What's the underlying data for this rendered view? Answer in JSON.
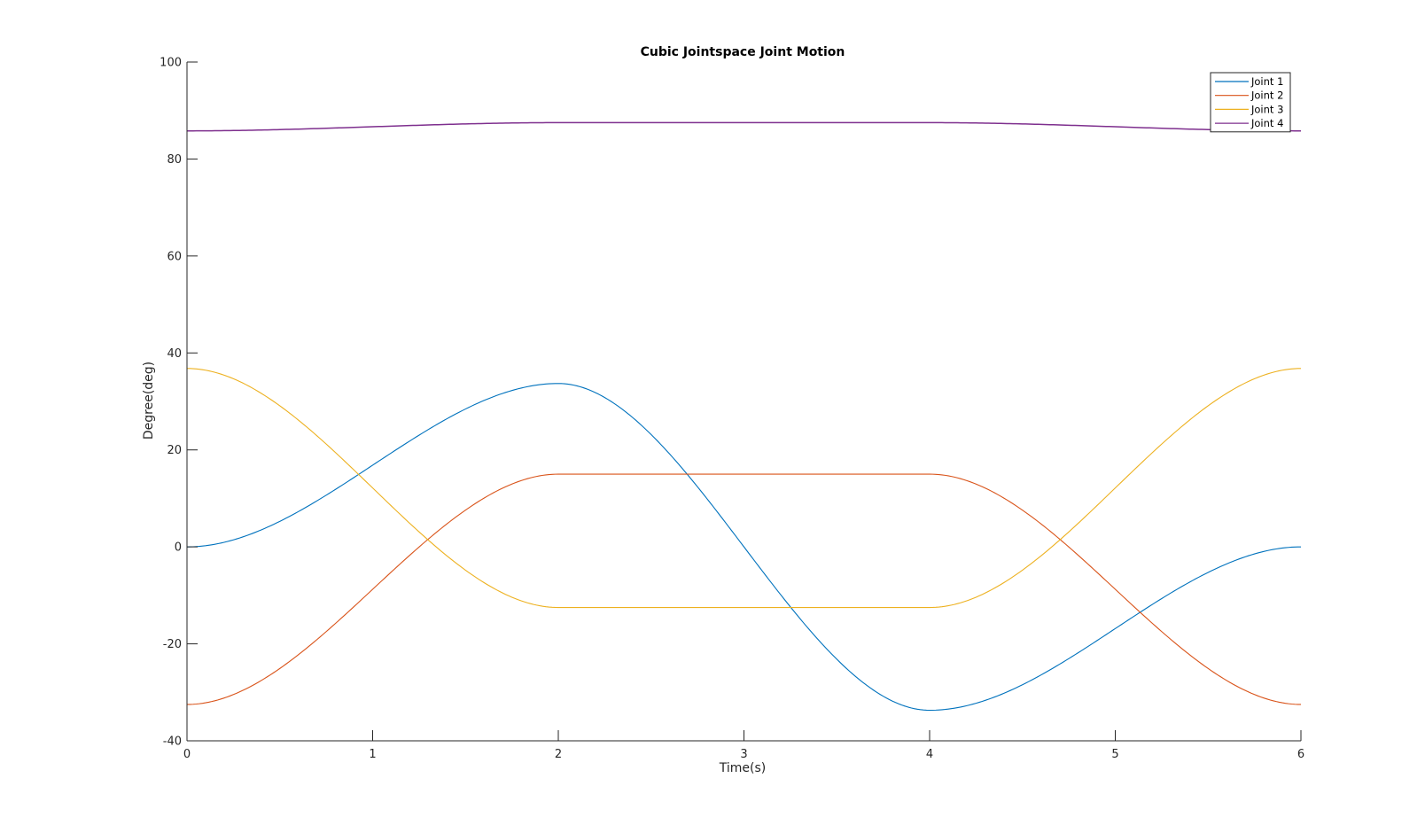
{
  "chart_data": {
    "type": "line",
    "title": "Cubic Jointspace Joint Motion",
    "xlabel": "Time(s)",
    "ylabel": "Degree(deg)",
    "xlim": [
      0,
      6
    ],
    "ylim": [
      -40,
      100
    ],
    "xticks": [
      "0",
      "1",
      "2",
      "3",
      "4",
      "5",
      "6"
    ],
    "yticks": [
      "-40",
      "-20",
      "0",
      "20",
      "40",
      "60",
      "80",
      "100"
    ],
    "grid": false,
    "legend_position": "top-right",
    "segments": [
      {
        "t0": 0,
        "t1": 2
      },
      {
        "t0": 2,
        "t1": 4
      },
      {
        "t0": 4,
        "t1": 6
      }
    ],
    "series": [
      {
        "name": "Joint 1",
        "color": "#0072BD",
        "waypoints": [
          {
            "x": 0,
            "y": 0
          },
          {
            "x": 2,
            "y": 33.7
          },
          {
            "x": 4,
            "y": -33.7
          },
          {
            "x": 6,
            "y": 0
          }
        ]
      },
      {
        "name": "Joint 2",
        "color": "#D95319",
        "waypoints": [
          {
            "x": 0,
            "y": -32.5
          },
          {
            "x": 2,
            "y": 15
          },
          {
            "x": 4,
            "y": 15
          },
          {
            "x": 6,
            "y": -32.5
          }
        ]
      },
      {
        "name": "Joint 3",
        "color": "#EDB120",
        "waypoints": [
          {
            "x": 0,
            "y": 36.8
          },
          {
            "x": 2,
            "y": -12.5
          },
          {
            "x": 4,
            "y": -12.5
          },
          {
            "x": 6,
            "y": 36.8
          }
        ]
      },
      {
        "name": "Joint 4",
        "color": "#7E2F8E",
        "waypoints": [
          {
            "x": 0,
            "y": 85.8
          },
          {
            "x": 2,
            "y": 87.5
          },
          {
            "x": 4,
            "y": 87.5
          },
          {
            "x": 6,
            "y": 85.8
          }
        ]
      }
    ]
  }
}
